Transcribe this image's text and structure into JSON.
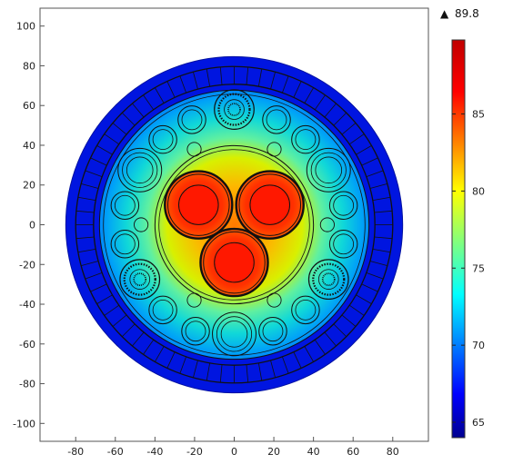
{
  "chart_data": {
    "type": "heatmap",
    "max_marker": {
      "symbol": "▲",
      "value_label": "89.8"
    },
    "x_ticks": [
      "-80",
      "-60",
      "-40",
      "-20",
      "0",
      "20",
      "40",
      "60",
      "80"
    ],
    "y_ticks": [
      "100",
      "80",
      "60",
      "40",
      "20",
      "0",
      "-20",
      "-40",
      "-60",
      "-80",
      "-100"
    ],
    "x_tick_values": [
      -80,
      -60,
      -40,
      -20,
      0,
      20,
      40,
      60,
      80
    ],
    "y_tick_values": [
      100,
      80,
      60,
      40,
      20,
      0,
      -20,
      -40,
      -60,
      -80,
      -100
    ],
    "xlim": [
      -98,
      98
    ],
    "ylim": [
      -109,
      109
    ],
    "colorbar": {
      "min": 64.0,
      "max": 89.8,
      "colormap": "jet",
      "ticks": [
        65,
        70,
        75,
        80,
        85
      ],
      "tick_labels": [
        "65",
        "70",
        "75",
        "80",
        "85"
      ]
    },
    "grid": false,
    "colors": {
      "cold": "#0000ff",
      "hot": "#ff0000",
      "outline": "#111111"
    }
  }
}
